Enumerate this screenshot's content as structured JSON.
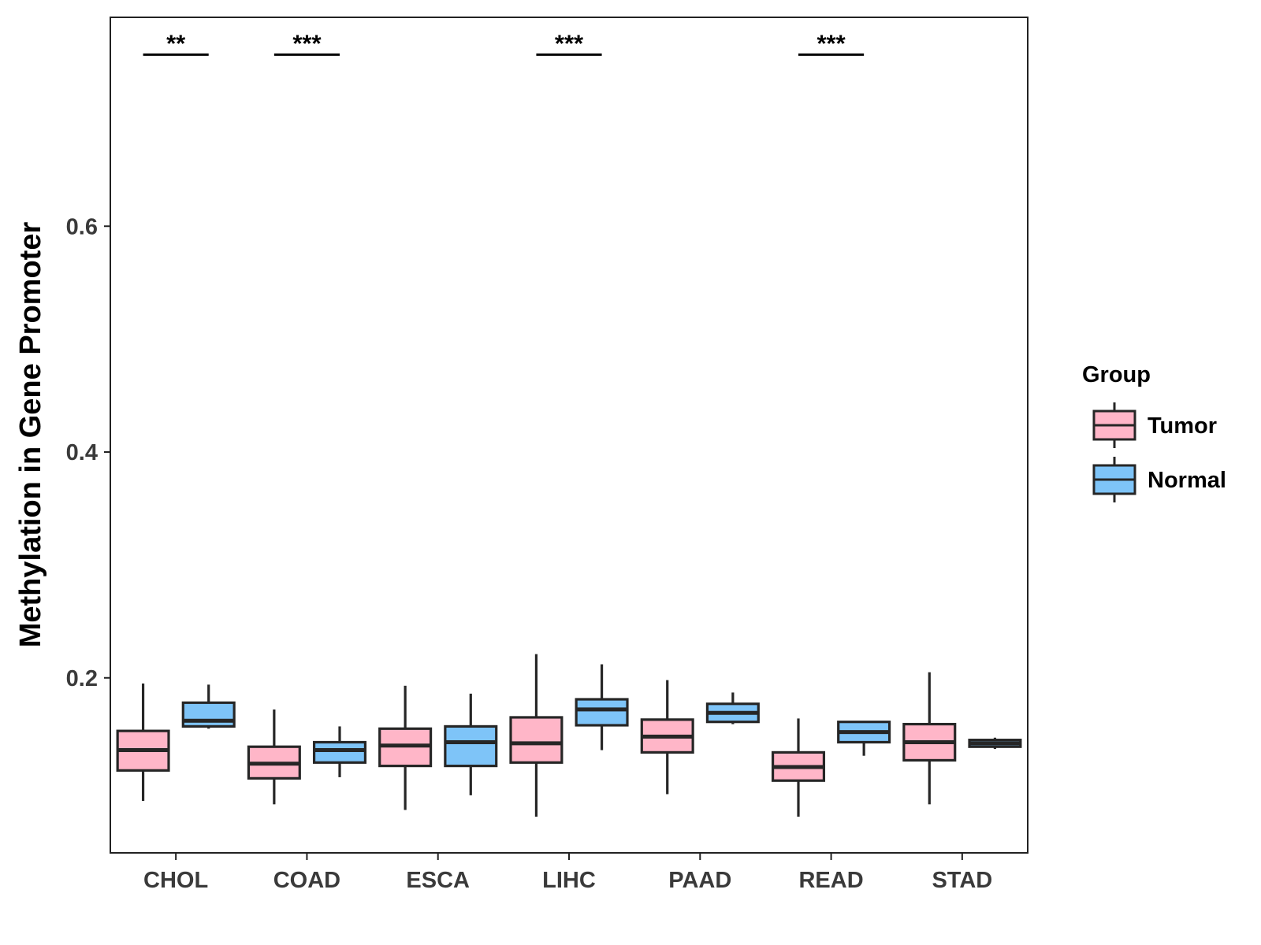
{
  "chart_data": {
    "type": "boxplot",
    "title": "",
    "xlabel": "",
    "ylabel": "Methylation in Gene Promoter",
    "ylim": [
      0.045,
      0.785
    ],
    "yticks": [
      0.2,
      0.4,
      0.6
    ],
    "ytick_labels": [
      "0.2",
      "0.4",
      "0.6"
    ],
    "categories": [
      "CHOL",
      "COAD",
      "ESCA",
      "LIHC",
      "PAAD",
      "READ",
      "STAD"
    ],
    "grid": false,
    "legend": {
      "title": "Group",
      "position": "right",
      "entries": [
        {
          "name": "Tumor",
          "color": "#FFB6C8"
        },
        {
          "name": "Normal",
          "color": "#7EC4F8"
        }
      ]
    },
    "series": [
      {
        "name": "Tumor",
        "color": "#FFB6C8",
        "boxes": [
          {
            "min": 0.091,
            "q1": 0.118,
            "median": 0.136,
            "q3": 0.153,
            "max": 0.195
          },
          {
            "min": 0.088,
            "q1": 0.111,
            "median": 0.124,
            "q3": 0.139,
            "max": 0.172
          },
          {
            "min": 0.083,
            "q1": 0.122,
            "median": 0.14,
            "q3": 0.155,
            "max": 0.193
          },
          {
            "min": 0.077,
            "q1": 0.125,
            "median": 0.142,
            "q3": 0.165,
            "max": 0.221
          },
          {
            "min": 0.097,
            "q1": 0.134,
            "median": 0.148,
            "q3": 0.163,
            "max": 0.198
          },
          {
            "min": 0.077,
            "q1": 0.109,
            "median": 0.121,
            "q3": 0.134,
            "max": 0.164
          },
          {
            "min": 0.088,
            "q1": 0.127,
            "median": 0.143,
            "q3": 0.159,
            "max": 0.205
          }
        ]
      },
      {
        "name": "Normal",
        "color": "#7EC4F8",
        "boxes": [
          {
            "min": 0.155,
            "q1": 0.157,
            "median": 0.162,
            "q3": 0.178,
            "max": 0.194
          },
          {
            "min": 0.112,
            "q1": 0.125,
            "median": 0.136,
            "q3": 0.143,
            "max": 0.157
          },
          {
            "min": 0.096,
            "q1": 0.122,
            "median": 0.143,
            "q3": 0.157,
            "max": 0.186
          },
          {
            "min": 0.136,
            "q1": 0.158,
            "median": 0.172,
            "q3": 0.181,
            "max": 0.212
          },
          {
            "min": 0.159,
            "q1": 0.161,
            "median": 0.169,
            "q3": 0.177,
            "max": 0.187
          },
          {
            "min": 0.131,
            "q1": 0.143,
            "median": 0.152,
            "q3": 0.161,
            "max": 0.161
          },
          {
            "min": 0.137,
            "q1": 0.139,
            "median": 0.142,
            "q3": 0.145,
            "max": 0.147
          }
        ]
      }
    ],
    "annotations": [
      {
        "category": "CHOL",
        "label": "**",
        "y": 0.752
      },
      {
        "category": "COAD",
        "label": "***",
        "y": 0.752
      },
      {
        "category": "LIHC",
        "label": "***",
        "y": 0.752
      },
      {
        "category": "READ",
        "label": "***",
        "y": 0.752
      }
    ],
    "styles": {
      "box_stroke": "#262626",
      "axis_color": "#222222",
      "tick_label_color": "#3a3a3a",
      "background": "#ffffff"
    }
  }
}
